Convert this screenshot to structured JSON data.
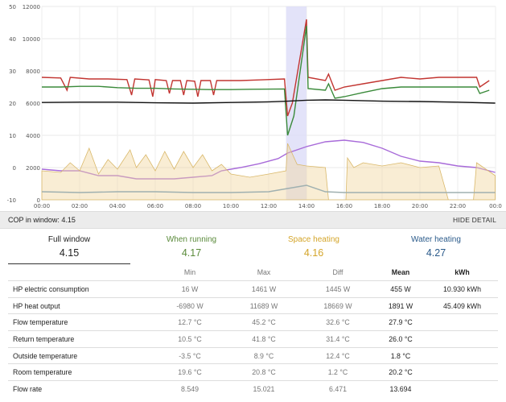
{
  "chart_data": {
    "type": "line",
    "x_ticks": [
      "00:00",
      "02:00",
      "04:00",
      "06:00",
      "08:00",
      "10:00",
      "12:00",
      "14:00",
      "16:00",
      "18:00",
      "20:00",
      "22:00",
      "00:0"
    ],
    "y_left_ticks": [
      "50",
      "40",
      "30",
      "20",
      "10",
      "0",
      "-10"
    ],
    "y_right_ticks": [
      "12000",
      "10000",
      "8000",
      "6000",
      "4000",
      "2000",
      "0"
    ],
    "y_left_range": [
      -10,
      50
    ],
    "y_right_range": [
      0,
      12000
    ],
    "highlight_window": [
      "12:55",
      "14:00"
    ],
    "series": [
      {
        "color": "#c23531",
        "axis": "left",
        "points": [
          [
            "00:00",
            28
          ],
          [
            "01:00",
            27.8
          ],
          [
            "01:20",
            24
          ],
          [
            "01:30",
            28
          ],
          [
            "02:30",
            27.5
          ],
          [
            "03:30",
            27.5
          ],
          [
            "04:30",
            27.3
          ],
          [
            "04:45",
            22.5
          ],
          [
            "04:55",
            27.5
          ],
          [
            "05:40",
            27.2
          ],
          [
            "05:52",
            22
          ],
          [
            "06:00",
            27.3
          ],
          [
            "06:35",
            27
          ],
          [
            "06:45",
            23
          ],
          [
            "06:55",
            27
          ],
          [
            "07:20",
            27
          ],
          [
            "07:30",
            22.5
          ],
          [
            "07:40",
            27
          ],
          [
            "08:05",
            26.8
          ],
          [
            "08:15",
            22
          ],
          [
            "08:25",
            27
          ],
          [
            "08:55",
            27
          ],
          [
            "09:05",
            22.5
          ],
          [
            "09:15",
            27
          ],
          [
            "10:30",
            27
          ],
          [
            "11:30",
            27.2
          ],
          [
            "12:50",
            27.5
          ],
          [
            "13:00",
            16
          ],
          [
            "13:15",
            20
          ],
          [
            "14:00",
            46
          ],
          [
            "14:05",
            28
          ],
          [
            "15:00",
            27
          ],
          [
            "15:10",
            29
          ],
          [
            "15:30",
            24
          ],
          [
            "16:00",
            25
          ],
          [
            "17:00",
            26
          ],
          [
            "18:00",
            27
          ],
          [
            "19:00",
            28
          ],
          [
            "20:00",
            27.5
          ],
          [
            "21:00",
            28
          ],
          [
            "22:00",
            28
          ],
          [
            "22:30",
            28
          ],
          [
            "23:00",
            28
          ],
          [
            "23:10",
            25
          ],
          [
            "23:40",
            27
          ]
        ]
      },
      {
        "color": "#3a8a3a",
        "axis": "left",
        "points": [
          [
            "00:00",
            25
          ],
          [
            "01:00",
            25
          ],
          [
            "02:00",
            25.2
          ],
          [
            "03:00",
            25.2
          ],
          [
            "04:00",
            24.8
          ],
          [
            "05:00",
            24.6
          ],
          [
            "06:00",
            24.6
          ],
          [
            "07:00",
            24.4
          ],
          [
            "08:00",
            24.3
          ],
          [
            "09:00",
            24.2
          ],
          [
            "10:00",
            24.2
          ],
          [
            "11:00",
            24.3
          ],
          [
            "12:50",
            24.4
          ],
          [
            "13:00",
            10
          ],
          [
            "13:20",
            16
          ],
          [
            "14:00",
            44
          ],
          [
            "14:05",
            24.5
          ],
          [
            "15:00",
            24
          ],
          [
            "15:10",
            26
          ],
          [
            "15:30",
            21.5
          ],
          [
            "16:00",
            22
          ],
          [
            "17:00",
            23.3
          ],
          [
            "18:00",
            24.5
          ],
          [
            "19:00",
            25
          ],
          [
            "20:00",
            25
          ],
          [
            "21:00",
            25
          ],
          [
            "22:00",
            25
          ],
          [
            "23:00",
            25
          ],
          [
            "23:10",
            23
          ],
          [
            "23:40",
            24
          ]
        ]
      },
      {
        "color": "#111111",
        "axis": "left",
        "points": [
          [
            "00:00",
            20.2
          ],
          [
            "02:00",
            20.3
          ],
          [
            "04:00",
            20.3
          ],
          [
            "06:00",
            20.1
          ],
          [
            "08:00",
            20.0
          ],
          [
            "10:00",
            20.2
          ],
          [
            "12:00",
            20.4
          ],
          [
            "13:00",
            20.6
          ],
          [
            "14:00",
            20.9
          ],
          [
            "15:00",
            21.0
          ],
          [
            "16:00",
            20.9
          ],
          [
            "18:00",
            20.6
          ],
          [
            "20:00",
            20.5
          ],
          [
            "22:00",
            20.3
          ],
          [
            "23:59",
            20.0
          ]
        ]
      },
      {
        "color": "#a86bd9",
        "axis": "left",
        "points": [
          [
            "00:00",
            -0.5
          ],
          [
            "01:00",
            -1
          ],
          [
            "02:00",
            -1
          ],
          [
            "03:00",
            -2.5
          ],
          [
            "04:00",
            -2.5
          ],
          [
            "05:00",
            -3.5
          ],
          [
            "07:00",
            -3.5
          ],
          [
            "08:00",
            -3
          ],
          [
            "09:00",
            -2.5
          ],
          [
            "09:30",
            -1
          ],
          [
            "10:30",
            0
          ],
          [
            "11:30",
            1.2
          ],
          [
            "12:30",
            2.8
          ],
          [
            "13:00",
            4.5
          ],
          [
            "14:00",
            6.5
          ],
          [
            "15:00",
            8
          ],
          [
            "16:00",
            8.5
          ],
          [
            "17:00",
            7.8
          ],
          [
            "18:00",
            6
          ],
          [
            "19:00",
            3.5
          ],
          [
            "20:00",
            2
          ],
          [
            "21:00",
            1.5
          ],
          [
            "22:00",
            0.5
          ],
          [
            "23:00",
            0
          ],
          [
            "23:59",
            -1.5
          ]
        ]
      },
      {
        "color": "#f2d8a0",
        "axis": "right",
        "area": true,
        "points": [
          [
            "00:00",
            1800
          ],
          [
            "01:00",
            1700
          ],
          [
            "01:30",
            2300
          ],
          [
            "02:00",
            1800
          ],
          [
            "02:30",
            3200
          ],
          [
            "03:00",
            1600
          ],
          [
            "03:30",
            2500
          ],
          [
            "04:00",
            1900
          ],
          [
            "04:40",
            3100
          ],
          [
            "05:00",
            2000
          ],
          [
            "05:30",
            2800
          ],
          [
            "06:00",
            1800
          ],
          [
            "06:30",
            3000
          ],
          [
            "07:00",
            1900
          ],
          [
            "07:30",
            3000
          ],
          [
            "08:00",
            2000
          ],
          [
            "08:30",
            2800
          ],
          [
            "09:00",
            1800
          ],
          [
            "09:30",
            2200
          ],
          [
            "10:00",
            1600
          ],
          [
            "11:00",
            1400
          ],
          [
            "12:00",
            1600
          ],
          [
            "12:55",
            1800
          ],
          [
            "13:00",
            3500
          ],
          [
            "13:30",
            2200
          ],
          [
            "14:00",
            2100
          ],
          [
            "15:00",
            2000
          ],
          [
            "15:10",
            0
          ],
          [
            "16:05",
            0
          ],
          [
            "16:10",
            2600
          ],
          [
            "16:30",
            2000
          ],
          [
            "17:00",
            2300
          ],
          [
            "18:00",
            2100
          ],
          [
            "19:00",
            2300
          ],
          [
            "20:00",
            2000
          ],
          [
            "21:00",
            2100
          ],
          [
            "21:30",
            0
          ],
          [
            "22:50",
            0
          ],
          [
            "23:00",
            2300
          ],
          [
            "23:59",
            1500
          ]
        ]
      },
      {
        "color": "#9fb0b0",
        "axis": "right",
        "points": [
          [
            "00:00",
            500
          ],
          [
            "02:00",
            450
          ],
          [
            "04:00",
            500
          ],
          [
            "06:00",
            500
          ],
          [
            "08:00",
            450
          ],
          [
            "10:00",
            450
          ],
          [
            "12:00",
            500
          ],
          [
            "13:00",
            700
          ],
          [
            "14:00",
            900
          ],
          [
            "15:00",
            500
          ],
          [
            "16:00",
            450
          ],
          [
            "18:00",
            450
          ],
          [
            "20:00",
            450
          ],
          [
            "22:00",
            450
          ],
          [
            "23:59",
            450
          ]
        ]
      }
    ]
  },
  "cop_bar": {
    "cop_label": "COP in window: 4.15",
    "hide_detail": "HIDE DETAIL"
  },
  "tabs": [
    {
      "label": "Full window",
      "value": "4.15",
      "color": "#222222"
    },
    {
      "label": "When running",
      "value": "4.17",
      "color": "#5a8a3a"
    },
    {
      "label": "Space heating",
      "value": "4.16",
      "color": "#d4a52a"
    },
    {
      "label": "Water heating",
      "value": "4.27",
      "color": "#2a5a8a"
    }
  ],
  "table": {
    "headers": [
      "",
      "Min",
      "Max",
      "Diff",
      "Mean",
      "kWh"
    ],
    "rows": [
      [
        "HP electric consumption",
        "16 W",
        "1461 W",
        "1445 W",
        "455 W",
        "10.930 kWh"
      ],
      [
        "HP heat output",
        "-6980 W",
        "11689 W",
        "18669 W",
        "1891 W",
        "45.409 kWh"
      ],
      [
        "Flow temperature",
        "12.7 °C",
        "45.2 °C",
        "32.6 °C",
        "27.9 °C",
        ""
      ],
      [
        "Return temperature",
        "10.5 °C",
        "41.8 °C",
        "31.4 °C",
        "26.0 °C",
        ""
      ],
      [
        "Outside temperature",
        "-3.5 °C",
        "8.9 °C",
        "12.4 °C",
        "1.8 °C",
        ""
      ],
      [
        "Room temperature",
        "19.6 °C",
        "20.8 °C",
        "1.2 °C",
        "20.2 °C",
        ""
      ],
      [
        "Flow rate",
        "8.549",
        "15.021",
        "6.471",
        "13.694",
        ""
      ]
    ]
  }
}
